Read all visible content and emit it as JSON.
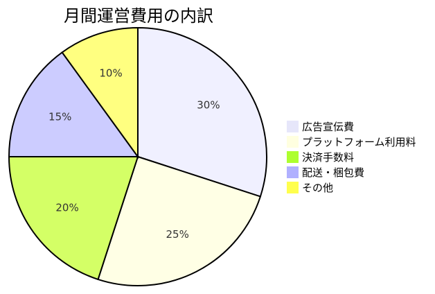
{
  "chart_data": {
    "type": "pie",
    "title": "月間運営費用の内訳",
    "slices": [
      {
        "label": "広告宣伝費",
        "value": 30,
        "display": "30%",
        "color": "#f0f0ff",
        "legend_color": "#e6e6fa"
      },
      {
        "label": "プラットフォーム利用料",
        "value": 25,
        "display": "25%",
        "color": "#ffffe5",
        "legend_color": "#ffffe0"
      },
      {
        "label": "決済手数料",
        "value": 20,
        "display": "20%",
        "color": "#d4ff66",
        "legend_color": "#adff2f"
      },
      {
        "label": "配送・梱包費",
        "value": 15,
        "display": "15%",
        "color": "#ccccff",
        "legend_color": "#b0b0ff"
      },
      {
        "label": "その他",
        "value": 10,
        "display": "10%",
        "color": "#ffff80",
        "legend_color": "#ffff4d"
      }
    ],
    "legend_position": "right",
    "start_angle": "top",
    "direction": "clockwise"
  }
}
